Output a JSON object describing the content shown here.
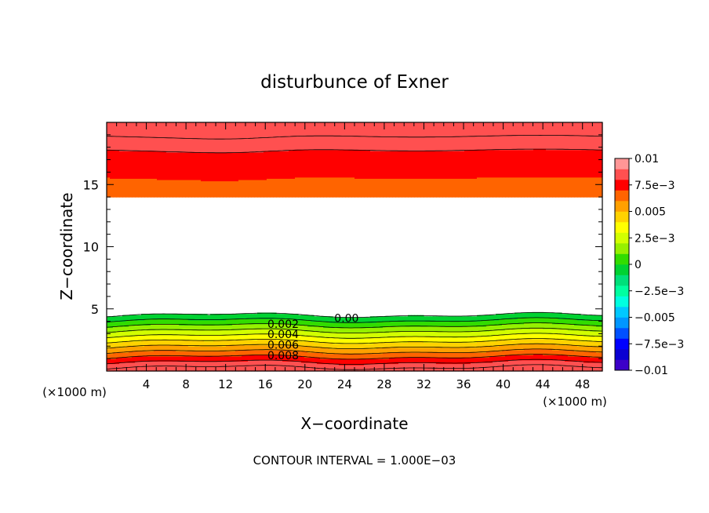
{
  "chart_data": {
    "type": "heatmap",
    "title": "disturbunce of Exner",
    "xlabel": "X−coordinate",
    "ylabel": "Z−coordinate",
    "x_unit": "(×1000 m)",
    "x_unit_right": "(×1000 m)",
    "xlim": [
      0,
      50
    ],
    "ylim": [
      0,
      20
    ],
    "x_ticks": [
      "4",
      "8",
      "12",
      "16",
      "20",
      "24",
      "28",
      "32",
      "36",
      "40",
      "44",
      "48"
    ],
    "y_ticks": [
      "5",
      "10",
      "15"
    ],
    "footer": "CONTOUR INTERVAL = 1.000E−03",
    "contour_labels": [
      "0.008",
      "0.006",
      "0.004",
      "0.002",
      "0.00"
    ],
    "colorbar": {
      "labels": [
        "0.01",
        "7.5e−3",
        "0.005",
        "2.5e−3",
        "0",
        "−2.5e−3",
        "−0.005",
        "−7.5e−3",
        "−0.01"
      ],
      "levels": [
        -0.01,
        -0.009,
        -0.008,
        -0.007,
        -0.006,
        -0.005,
        -0.004,
        -0.003,
        -0.002,
        -0.001,
        0,
        0.001,
        0.002,
        0.003,
        0.004,
        0.005,
        0.006,
        0.007,
        0.008,
        0.009,
        0.01
      ],
      "colors": [
        "#8a00b8",
        "#3c00c8",
        "#0a00d2",
        "#0000ff",
        "#0050ff",
        "#0096ff",
        "#00c8ff",
        "#00ffe0",
        "#00ffa0",
        "#00e07a",
        "#00d232",
        "#32dc00",
        "#96f000",
        "#d2ff00",
        "#ffff00",
        "#ffd200",
        "#ffa000",
        "#ff6400",
        "#ff0000",
        "#ff5050",
        "#ff9696"
      ]
    }
  }
}
